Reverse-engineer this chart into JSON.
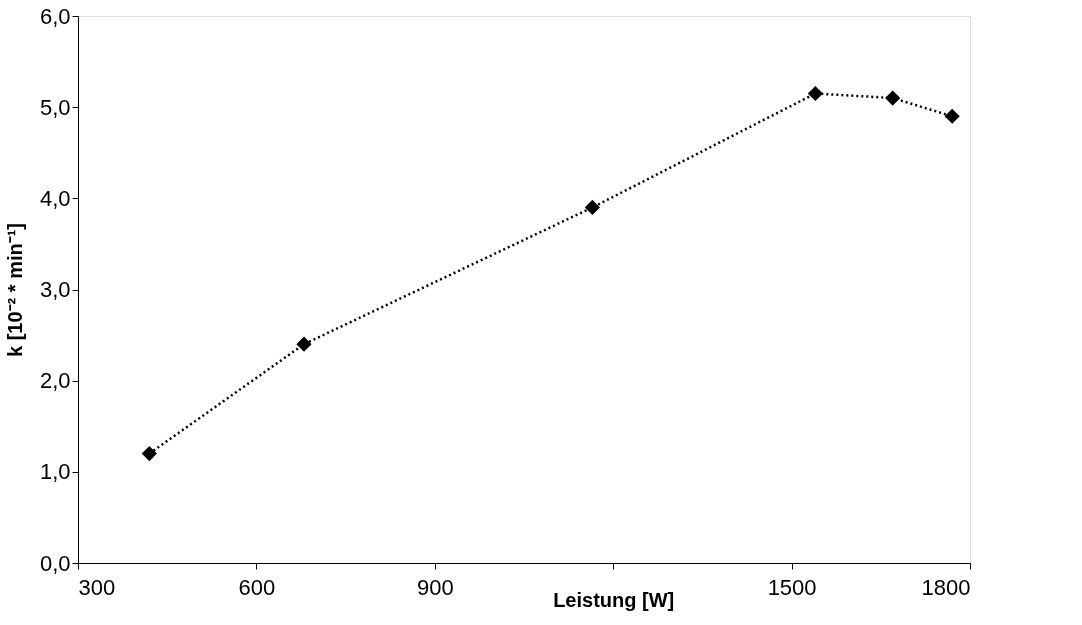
{
  "chart_data": {
    "type": "line",
    "xlabel": "Leistung [W]",
    "ylabel": "k [10⁻² * min⁻¹]",
    "x": [
      420,
      680,
      1165,
      1540,
      1670,
      1770
    ],
    "series": [
      {
        "color": "#000000",
        "values": [
          1.2,
          2.4,
          3.9,
          5.15,
          5.1,
          4.9
        ]
      }
    ],
    "xlim": [
      300,
      1800
    ],
    "xticks": [
      300,
      600,
      900,
      {
        "value": 1200,
        "label": null
      },
      1500,
      1800
    ],
    "ylim": [
      0,
      6
    ],
    "yticks": [
      {
        "value": 0,
        "label": "0,0"
      },
      {
        "value": 1,
        "label": "1,0"
      },
      {
        "value": 2,
        "label": "2,0"
      },
      {
        "value": 3,
        "label": "3,0"
      },
      {
        "value": 4,
        "label": "4,0"
      },
      {
        "value": 5,
        "label": "5,0"
      },
      {
        "value": 6,
        "label": "6,0"
      }
    ],
    "grid": false,
    "marker": "diamond",
    "line_style": "dotted"
  }
}
